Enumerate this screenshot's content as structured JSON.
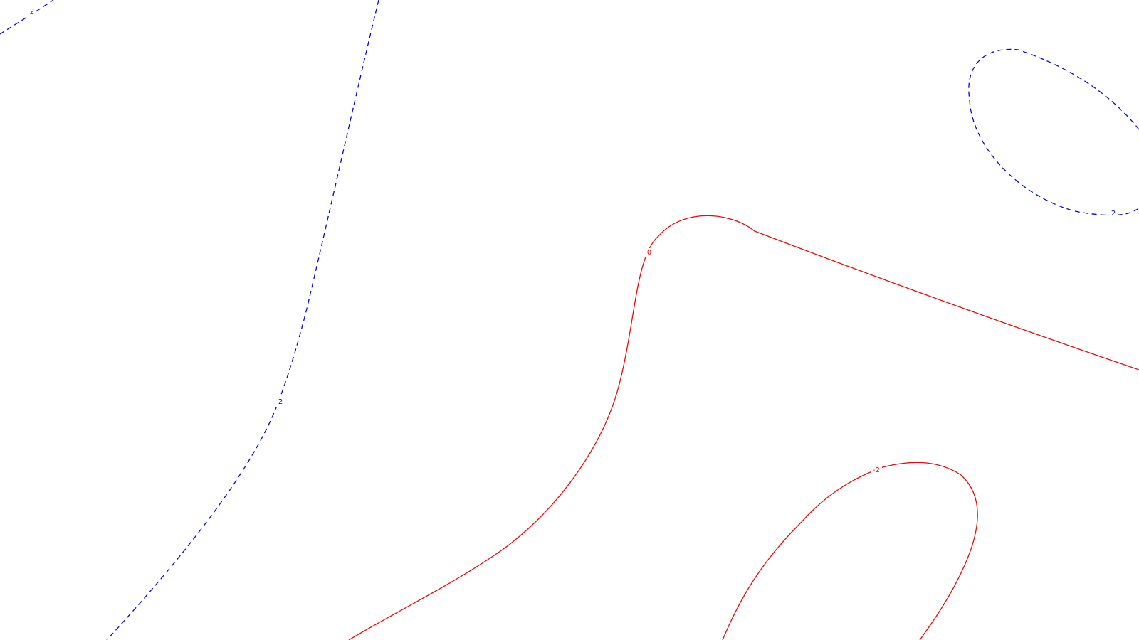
{
  "contour_map": {
    "background_color": "#ffffff",
    "styles": {
      "positive": {
        "color": "#0000ff",
        "dash": "dashed"
      },
      "zero": {
        "color": "#ff0000",
        "dash": "solid"
      },
      "negative": {
        "color": "#ff0000",
        "dash": "solid"
      }
    },
    "contours": [
      {
        "id": "contour-top-left",
        "level": 2,
        "style": "positive",
        "labels": [
          {
            "text": "2"
          }
        ]
      },
      {
        "id": "contour-left-arc",
        "level": 2,
        "style": "positive",
        "labels": [
          {
            "text": "2"
          }
        ]
      },
      {
        "id": "contour-top-right-loop",
        "level": 2,
        "style": "positive",
        "labels": [
          {
            "text": "2"
          }
        ]
      },
      {
        "id": "contour-zero",
        "level": 0,
        "style": "zero",
        "labels": [
          {
            "text": "0"
          }
        ]
      },
      {
        "id": "contour-bottom-right-loop",
        "level": -2,
        "style": "negative",
        "labels": [
          {
            "text": "-2"
          }
        ]
      }
    ]
  }
}
